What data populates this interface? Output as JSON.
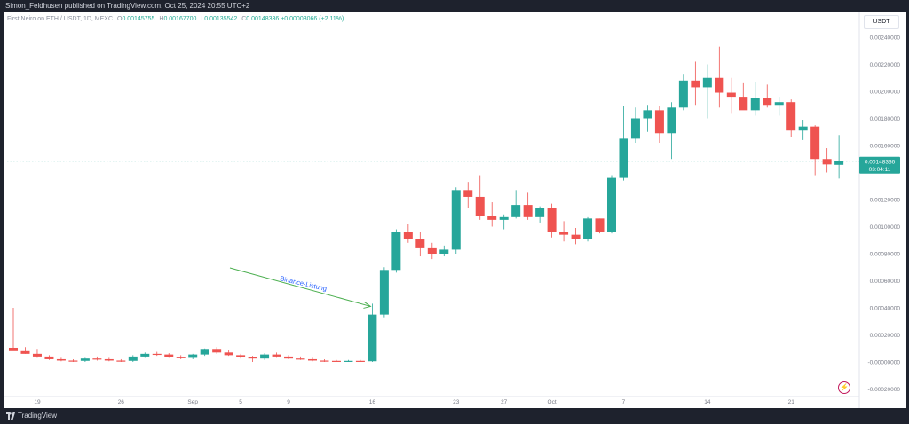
{
  "header": {
    "publish_text": "Simon_Feldhusen published on TradingView.com, Oct 25, 2024 20:55 UTC+2"
  },
  "legend": {
    "symbol_text": "First Neiro on ETH / USDT, 1D, MEXC",
    "open_key": "O",
    "open": "0.00145755",
    "high_key": "H",
    "high": "0.00167700",
    "low_key": "L",
    "low": "0.00135542",
    "close_key": "C",
    "close": "0.00148336",
    "change": "+0.00003066 (+2.11%)"
  },
  "currency_label": "USDT",
  "footer": {
    "brand": "TradingView"
  },
  "icons": {
    "logo": "tradingview-logo-icon",
    "bolt": "lightning-icon"
  },
  "colors": {
    "up": "#26a69a",
    "down": "#ef5350",
    "annotation": "#2962ff",
    "arrow": "#4caf50",
    "price_line": "#26a69a"
  },
  "chart_data": {
    "type": "candlestick",
    "y_range": [
      -0.0001,
      0.0025
    ],
    "y_ticks": [
      {
        "v": 0.0024,
        "label": "0.00240000"
      },
      {
        "v": 0.0022,
        "label": "0.00220000"
      },
      {
        "v": 0.002,
        "label": "0.00200000"
      },
      {
        "v": 0.0018,
        "label": "0.00180000"
      },
      {
        "v": 0.0016,
        "label": "0.00160000"
      },
      {
        "v": 0.0012,
        "label": "0.00120000"
      },
      {
        "v": 0.001,
        "label": "0.00100000"
      },
      {
        "v": 0.0008,
        "label": "0.00080000"
      },
      {
        "v": 0.0006,
        "label": "0.00060000"
      },
      {
        "v": 0.0004,
        "label": "0.00040000"
      },
      {
        "v": 0.0002,
        "label": "0.00020000"
      },
      {
        "v": 0.0,
        "label": "-0.00000000"
      },
      {
        "v": -0.0002,
        "label": "-0.00020000"
      }
    ],
    "x_labels": [
      {
        "i": 2,
        "label": "19"
      },
      {
        "i": 9,
        "label": "26"
      },
      {
        "i": 15,
        "label": "Sep"
      },
      {
        "i": 19,
        "label": "5"
      },
      {
        "i": 23,
        "label": "9"
      },
      {
        "i": 30,
        "label": "16"
      },
      {
        "i": 37,
        "label": "23"
      },
      {
        "i": 41,
        "label": "27"
      },
      {
        "i": 45,
        "label": "Oct"
      },
      {
        "i": 51,
        "label": "7"
      },
      {
        "i": 58,
        "label": "14"
      },
      {
        "i": 65,
        "label": "21"
      }
    ],
    "current_price": {
      "value": 0.00148336,
      "label": "0.00148336",
      "countdown": "03:04:11"
    },
    "annotation": {
      "text": "Binance-Listung",
      "target_index": 30,
      "target_value": 0.00043
    },
    "candles": [
      {
        "o": 0.000105,
        "h": 0.0004,
        "l": 9e-05,
        "c": 8e-05
      },
      {
        "o": 8e-05,
        "h": 0.00011,
        "l": 6e-05,
        "c": 6e-05
      },
      {
        "o": 6e-05,
        "h": 9e-05,
        "l": 3e-05,
        "c": 4e-05
      },
      {
        "o": 4e-05,
        "h": 5e-05,
        "l": 1.5e-05,
        "c": 2e-05
      },
      {
        "o": 2e-05,
        "h": 3e-05,
        "l": 5e-06,
        "c": 1e-05
      },
      {
        "o": 1e-05,
        "h": 2e-05,
        "l": 0.0,
        "c": 8e-06
      },
      {
        "o": 8e-06,
        "h": 3e-05,
        "l": 0.0,
        "c": 2.5e-05
      },
      {
        "o": 2.5e-05,
        "h": 4e-05,
        "l": 1e-05,
        "c": 2e-05
      },
      {
        "o": 2e-05,
        "h": 3e-05,
        "l": 5e-06,
        "c": 1e-05
      },
      {
        "o": 1e-05,
        "h": 2e-05,
        "l": 0.0,
        "c": 8e-06
      },
      {
        "o": 8e-06,
        "h": 5e-05,
        "l": 0.0,
        "c": 4e-05
      },
      {
        "o": 4e-05,
        "h": 7e-05,
        "l": 3e-05,
        "c": 6e-05
      },
      {
        "o": 6e-05,
        "h": 7.5e-05,
        "l": 4.5e-05,
        "c": 5.5e-05
      },
      {
        "o": 5.5e-05,
        "h": 6.5e-05,
        "l": 3e-05,
        "c": 3.5e-05
      },
      {
        "o": 3.5e-05,
        "h": 5e-05,
        "l": 2e-05,
        "c": 3e-05
      },
      {
        "o": 3e-05,
        "h": 6e-05,
        "l": 2e-05,
        "c": 5.5e-05
      },
      {
        "o": 5.5e-05,
        "h": 0.0001,
        "l": 4.5e-05,
        "c": 9e-05
      },
      {
        "o": 9e-05,
        "h": 0.00011,
        "l": 6e-05,
        "c": 7e-05
      },
      {
        "o": 7e-05,
        "h": 8.5e-05,
        "l": 4.5e-05,
        "c": 5e-05
      },
      {
        "o": 5e-05,
        "h": 6e-05,
        "l": 2.5e-05,
        "c": 3.5e-05
      },
      {
        "o": 3.5e-05,
        "h": 4.5e-05,
        "l": 0.0,
        "c": 2.5e-05
      },
      {
        "o": 2.5e-05,
        "h": 6.5e-05,
        "l": 1.5e-05,
        "c": 5.5e-05
      },
      {
        "o": 5.5e-05,
        "h": 7e-05,
        "l": 3e-05,
        "c": 4e-05
      },
      {
        "o": 4e-05,
        "h": 5e-05,
        "l": 2e-05,
        "c": 2.5e-05
      },
      {
        "o": 2.5e-05,
        "h": 4e-05,
        "l": 1.5e-05,
        "c": 2e-05
      },
      {
        "o": 2e-05,
        "h": 3e-05,
        "l": 5e-06,
        "c": 1e-05
      },
      {
        "o": 1e-05,
        "h": 2e-05,
        "l": 0.0,
        "c": 8e-06
      },
      {
        "o": 8e-06,
        "h": 1.5e-05,
        "l": 0.0,
        "c": 5e-06
      },
      {
        "o": 5e-06,
        "h": 1.5e-05,
        "l": 0.0,
        "c": 8e-06
      },
      {
        "o": 8e-06,
        "h": 1.5e-05,
        "l": 0.0,
        "c": 5e-06
      },
      {
        "o": 5e-06,
        "h": 0.00043,
        "l": 0.0,
        "c": 0.00035
      },
      {
        "o": 0.00035,
        "h": 0.0007,
        "l": 0.00033,
        "c": 0.00068
      },
      {
        "o": 0.00068,
        "h": 0.00098,
        "l": 0.00066,
        "c": 0.00096
      },
      {
        "o": 0.00096,
        "h": 0.00102,
        "l": 0.00088,
        "c": 0.00091
      },
      {
        "o": 0.00091,
        "h": 0.00096,
        "l": 0.00078,
        "c": 0.00084
      },
      {
        "o": 0.00084,
        "h": 0.00088,
        "l": 0.00076,
        "c": 0.0008
      },
      {
        "o": 0.0008,
        "h": 0.00086,
        "l": 0.00078,
        "c": 0.00083
      },
      {
        "o": 0.00083,
        "h": 0.00129,
        "l": 0.0008,
        "c": 0.00127
      },
      {
        "o": 0.00127,
        "h": 0.00133,
        "l": 0.00114,
        "c": 0.00122
      },
      {
        "o": 0.00122,
        "h": 0.00138,
        "l": 0.00105,
        "c": 0.00108
      },
      {
        "o": 0.00108,
        "h": 0.00118,
        "l": 0.001,
        "c": 0.00105
      },
      {
        "o": 0.00105,
        "h": 0.00109,
        "l": 0.00098,
        "c": 0.00107
      },
      {
        "o": 0.00107,
        "h": 0.00127,
        "l": 0.00106,
        "c": 0.00116
      },
      {
        "o": 0.00116,
        "h": 0.00125,
        "l": 0.00105,
        "c": 0.00107
      },
      {
        "o": 0.00107,
        "h": 0.00115,
        "l": 0.00103,
        "c": 0.00114
      },
      {
        "o": 0.00114,
        "h": 0.00117,
        "l": 0.00092,
        "c": 0.00096
      },
      {
        "o": 0.00096,
        "h": 0.00104,
        "l": 0.00089,
        "c": 0.00094
      },
      {
        "o": 0.00094,
        "h": 0.00099,
        "l": 0.00087,
        "c": 0.00091
      },
      {
        "o": 0.00091,
        "h": 0.00107,
        "l": 0.00089,
        "c": 0.00106
      },
      {
        "o": 0.00106,
        "h": 0.00106,
        "l": 0.00095,
        "c": 0.00096
      },
      {
        "o": 0.00096,
        "h": 0.00138,
        "l": 0.00095,
        "c": 0.00136
      },
      {
        "o": 0.00136,
        "h": 0.00189,
        "l": 0.00134,
        "c": 0.00165
      },
      {
        "o": 0.00165,
        "h": 0.00188,
        "l": 0.00162,
        "c": 0.0018
      },
      {
        "o": 0.0018,
        "h": 0.0019,
        "l": 0.0017,
        "c": 0.00186
      },
      {
        "o": 0.00186,
        "h": 0.00189,
        "l": 0.00162,
        "c": 0.00169
      },
      {
        "o": 0.00169,
        "h": 0.00192,
        "l": 0.0015,
        "c": 0.00188
      },
      {
        "o": 0.00188,
        "h": 0.00213,
        "l": 0.00186,
        "c": 0.00208
      },
      {
        "o": 0.00208,
        "h": 0.00222,
        "l": 0.0019,
        "c": 0.00203
      },
      {
        "o": 0.00203,
        "h": 0.0022,
        "l": 0.0018,
        "c": 0.0021
      },
      {
        "o": 0.0021,
        "h": 0.00233,
        "l": 0.00188,
        "c": 0.00199
      },
      {
        "o": 0.00199,
        "h": 0.0021,
        "l": 0.00184,
        "c": 0.00196
      },
      {
        "o": 0.00196,
        "h": 0.00206,
        "l": 0.00187,
        "c": 0.00186
      },
      {
        "o": 0.00186,
        "h": 0.00207,
        "l": 0.00182,
        "c": 0.00195
      },
      {
        "o": 0.00195,
        "h": 0.00205,
        "l": 0.00188,
        "c": 0.0019
      },
      {
        "o": 0.0019,
        "h": 0.00196,
        "l": 0.00182,
        "c": 0.00192
      },
      {
        "o": 0.00192,
        "h": 0.00194,
        "l": 0.00166,
        "c": 0.00171
      },
      {
        "o": 0.00171,
        "h": 0.00179,
        "l": 0.00164,
        "c": 0.00174
      },
      {
        "o": 0.00174,
        "h": 0.00175,
        "l": 0.00138,
        "c": 0.0015
      },
      {
        "o": 0.0015,
        "h": 0.00158,
        "l": 0.0014,
        "c": 0.00146
      },
      {
        "o": 0.001457,
        "h": 0.001677,
        "l": 0.001355,
        "c": 0.001483
      }
    ]
  }
}
